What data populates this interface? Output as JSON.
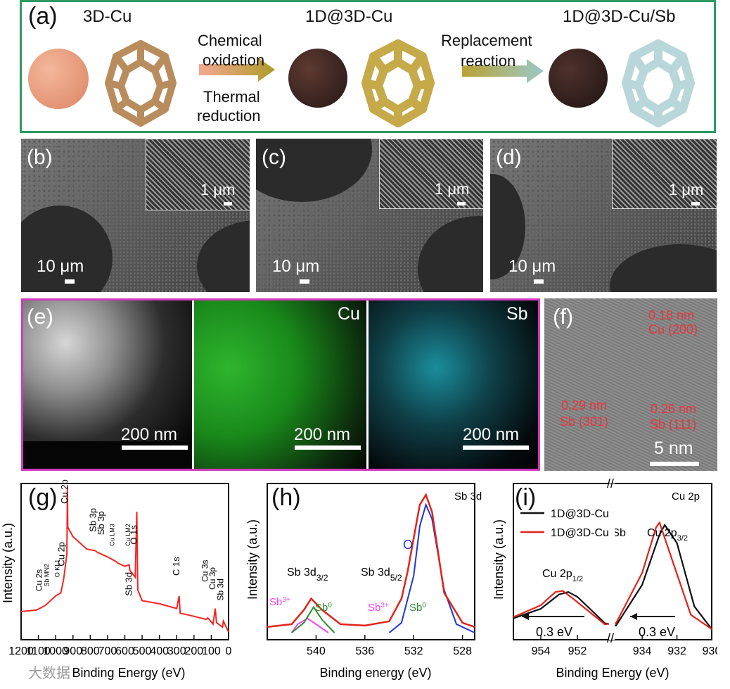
{
  "panel_a": {
    "label": "(a)",
    "title_3d": "3D-Cu",
    "title_1d3d": "1D@3D-Cu",
    "title_final": "1D@3D-Cu/Sb",
    "step1_top": "Chemical",
    "step1_mid": "oxidation",
    "step1_bot": "Thermal",
    "step1_bot2": "reduction",
    "step2_top": "Replacement",
    "step2_bot": "reaction",
    "colors": {
      "frame": "#2e9a62",
      "cu_disc": "#e79a7a",
      "cu_frame": "#b98c5d",
      "gold_frame": "#c6a948",
      "blue_frame": "#b9d7da"
    }
  },
  "sem_panels": [
    {
      "label": "(b)",
      "inset_scale": "1 μm",
      "main_scale": "10 μm"
    },
    {
      "label": "(c)",
      "inset_scale": "1 μm",
      "main_scale": "10 μm"
    },
    {
      "label": "(d)",
      "inset_scale": "1 μm",
      "main_scale": "10 μm"
    }
  ],
  "panel_e": {
    "label": "(e)",
    "elements": [
      "Cu",
      "Sb"
    ],
    "scale": "200 nm",
    "colors": {
      "frame": "#d23abf",
      "cu": "#1fbf2a",
      "sb": "#25b8cf"
    }
  },
  "panel_f": {
    "label": "(f)",
    "ann1a": "0.18 nm",
    "ann1b": "Cu (200)",
    "ann2a": "0.29 nm",
    "ann2b": "Sb (301)",
    "ann3a": "0.26 nm",
    "ann3b": "Sb (111)",
    "scale": "5 nm"
  },
  "panel_g": {
    "label": "(g)",
    "xlabel": "Binding Energy (eV)",
    "ylabel": "Intensity (a.u.)",
    "peak_labels": [
      "Cu 2s",
      "Sb MN2",
      "O KL1",
      "Cu 2p",
      "Cu 2p",
      "Sb 3p",
      "Sb 3p",
      "Cu LM3",
      "Cu LM2",
      "O 1s",
      "Sb 3d",
      "C 1s",
      "Cu 3s",
      "Cu 3p",
      "Sb 3d"
    ],
    "watermark": "大数据"
  },
  "panel_h": {
    "label": "(h)",
    "title": "Sb 3d",
    "xlabel": "Binding energy (eV)",
    "ylabel": "Intensity (a.u.)",
    "o_label": "O",
    "sb32_label": "Sb 3d",
    "sb32_sub": "3/2",
    "sb52_label": "Sb 3d",
    "sb52_sub": "5/2",
    "sb3plus": "Sb",
    "sb3plus_sup": "3+",
    "sb0": "Sb",
    "sb0_sup": "0"
  },
  "panel_i": {
    "label": "(i)",
    "title": "Cu 2p",
    "xlabel": "Binding Energy (eV)",
    "ylabel": "Intensity (a.u.)",
    "legend": [
      "1D@3D-Cu",
      "1D@3D-Cu/Sb"
    ],
    "cu12": "Cu 2p",
    "cu12_sub": "1/2",
    "cu32": "Cu 2p",
    "cu32_sub": "3/2",
    "shift1": "0.3 eV",
    "shift2": "0.3 eV"
  },
  "chart_data": [
    {
      "type": "line",
      "title": "",
      "xlabel": "Binding Energy (eV)",
      "ylabel": "Intensity (a.u.)",
      "xlim": [
        1200,
        0
      ],
      "xticks": [
        1200,
        1100,
        1000,
        900,
        800,
        700,
        600,
        500,
        400,
        300,
        200,
        100,
        0
      ],
      "series": [
        {
          "x": [
            1200,
            1110,
            1060,
            1000,
            970,
            955,
            950,
            935,
            932,
            930,
            900,
            820,
            770,
            760,
            700,
            650,
            640,
            600,
            575,
            570,
            560,
            540,
            531,
            525,
            500,
            400,
            300,
            286,
            280,
            200,
            130,
            120,
            90,
            77,
            70,
            35,
            30,
            0
          ],
          "y": [
            0.18,
            0.19,
            0.22,
            0.28,
            0.3,
            0.38,
            0.42,
            0.55,
            0.98,
            0.72,
            0.66,
            0.58,
            0.57,
            0.56,
            0.53,
            0.5,
            0.49,
            0.47,
            0.48,
            0.44,
            0.43,
            0.4,
            0.82,
            0.32,
            0.25,
            0.23,
            0.2,
            0.28,
            0.17,
            0.15,
            0.13,
            0.14,
            0.1,
            0.2,
            0.11,
            0.08,
            0.12,
            0.05
          ]
        }
      ]
    },
    {
      "type": "line",
      "title": "Sb 3d",
      "xlabel": "Binding energy (eV)",
      "ylabel": "Intensity (a.u.)",
      "xlim": [
        544,
        527
      ],
      "xticks": [
        540,
        536,
        532,
        528
      ],
      "series": [
        {
          "name": "envelope",
          "x": [
            544,
            542,
            541,
            540.4,
            539.5,
            538,
            536,
            534,
            533,
            532.5,
            531.5,
            531,
            530.5,
            529.5,
            528,
            527
          ],
          "y": [
            0.04,
            0.06,
            0.16,
            0.24,
            0.16,
            0.06,
            0.05,
            0.08,
            0.24,
            0.43,
            0.9,
            0.97,
            0.85,
            0.28,
            0.07,
            0.04
          ]
        },
        {
          "name": "O",
          "x": [
            534,
            533,
            532,
            531.5,
            531,
            530.5,
            529.5,
            528.5,
            527
          ],
          "y": [
            0.0,
            0.07,
            0.4,
            0.75,
            0.9,
            0.8,
            0.3,
            0.06,
            0.0
          ]
        },
        {
          "name": "Sb3+",
          "x": [
            542,
            541.5,
            540.7,
            540,
            539
          ],
          "y": [
            0.0,
            0.06,
            0.1,
            0.06,
            0.0
          ]
        },
        {
          "name": "Sb0",
          "x": [
            542,
            541,
            540.2,
            539.5,
            538.5
          ],
          "y": [
            0.0,
            0.07,
            0.18,
            0.09,
            0.0
          ]
        }
      ]
    },
    {
      "type": "line",
      "title": "Cu 2p",
      "xlabel": "Binding Energy (eV)",
      "ylabel": "Intensity (a.u.)",
      "xticks": [
        954,
        952,
        934,
        932,
        930
      ],
      "series": [
        {
          "name": "1D@3D-Cu",
          "x": [
            955.5,
            954,
            953,
            952.5,
            952,
            950.5,
            935.5,
            934,
            933,
            932.7,
            932,
            931,
            930
          ],
          "y": [
            0.12,
            0.2,
            0.32,
            0.34,
            0.3,
            0.08,
            0.06,
            0.4,
            0.82,
            0.9,
            0.75,
            0.22,
            0.03
          ]
        },
        {
          "name": "1D@3D-Cu/Sb",
          "x": [
            955.5,
            954,
            953.2,
            952.8,
            952.2,
            950.5,
            935.5,
            934,
            933.2,
            933.0,
            932.3,
            931.2,
            930
          ],
          "y": [
            0.13,
            0.23,
            0.34,
            0.35,
            0.28,
            0.07,
            0.08,
            0.5,
            0.88,
            0.92,
            0.62,
            0.15,
            0.03
          ]
        }
      ]
    }
  ]
}
